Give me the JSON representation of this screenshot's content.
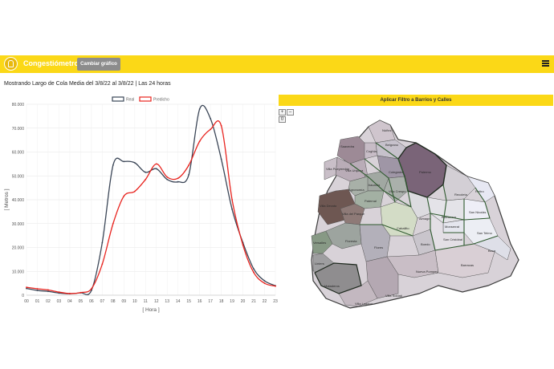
{
  "navbar": {
    "brand": "Congestiómetro",
    "switch_label": "Cambiar gráfico",
    "color": "#fbd817"
  },
  "subtitle": "Mostrando Largo de Cola Media del 3/8/22 al 3/8/22 | Las 24 horas",
  "filter_button": "Aplicar Filtro a Barrios y Calles",
  "map_controls": {
    "zoom_in": "+",
    "zoom_out": "–",
    "reset": "0"
  },
  "chart_data": {
    "type": "line",
    "x": [
      "00",
      "01",
      "02",
      "03",
      "04",
      "05",
      "06",
      "07",
      "08",
      "09",
      "10",
      "11",
      "12",
      "13",
      "14",
      "15",
      "16",
      "17",
      "18",
      "19",
      "20",
      "21",
      "22",
      "23"
    ],
    "series": [
      {
        "name": "Real",
        "color": "#3a4556",
        "values": [
          2800,
          2000,
          1600,
          900,
          600,
          1000,
          2000,
          22000,
          54500,
          56000,
          55500,
          51500,
          53000,
          48500,
          47500,
          50500,
          78000,
          74000,
          57000,
          36000,
          22000,
          11000,
          6000,
          4000
        ]
      },
      {
        "name": "Predicho",
        "color": "#e8241f",
        "values": [
          3300,
          2700,
          2200,
          1300,
          700,
          1100,
          2700,
          13000,
          30000,
          41500,
          43500,
          48500,
          55000,
          49500,
          49000,
          54500,
          64500,
          69500,
          71000,
          40000,
          21000,
          9500,
          5000,
          3800
        ]
      }
    ],
    "ylim": [
      0,
      80000
    ],
    "yticks": [
      "0",
      "10.000",
      "20.000",
      "30.000",
      "40.000",
      "50.000",
      "60.000",
      "70.000",
      "80.000"
    ],
    "xlabel": "[ Hora ]",
    "ylabel": "[ Metros ]",
    "legend_position": "top"
  },
  "map": {
    "barrios": [
      {
        "name": "Núñez",
        "color": "#cfc5cd"
      },
      {
        "name": "Saavedra",
        "color": "#9d8a96"
      },
      {
        "name": "Coghlan",
        "color": "#c7bcc6"
      },
      {
        "name": "Belgrano",
        "color": "#c6c1cb"
      },
      {
        "name": "Villa Urquiza",
        "color": "#b9acb7"
      },
      {
        "name": "Villa Pueyrredón",
        "color": "#c9bfc8"
      },
      {
        "name": "Colegiales",
        "color": "#9f96a6"
      },
      {
        "name": "Palermo",
        "color": "#7a6478"
      },
      {
        "name": "Chacarita",
        "color": "#a1a8a2"
      },
      {
        "name": "Agronomía",
        "color": "#a8b0a8"
      },
      {
        "name": "Villa Devoto",
        "color": "#6e5752"
      },
      {
        "name": "Villa del Parque",
        "color": "#8e7a77"
      },
      {
        "name": "Villa Crespo",
        "color": "#aab0ab"
      },
      {
        "name": "Paternal",
        "color": "#a3b0a3"
      },
      {
        "name": "Recoleta",
        "color": "#d3cfd5"
      },
      {
        "name": "Retiro",
        "color": "#e7e8f3"
      },
      {
        "name": "Almagro",
        "color": "#dcdbdf"
      },
      {
        "name": "Caballito",
        "color": "#d3dcc6"
      },
      {
        "name": "Balvanera",
        "color": "#e4e3e8"
      },
      {
        "name": "San Nicolás",
        "color": "#eeeef7"
      },
      {
        "name": "Monserrat",
        "color": "#e5e6ee"
      },
      {
        "name": "Versalles",
        "color": "#879985"
      },
      {
        "name": "Floresta",
        "color": "#9da49f"
      },
      {
        "name": "Flores",
        "color": "#b3b0ba"
      },
      {
        "name": "Boedo",
        "color": "#c9c5cc"
      },
      {
        "name": "San Cristóbal",
        "color": "#e3dfe5"
      },
      {
        "name": "San Telmo",
        "color": "#eceef4"
      },
      {
        "name": "Liniers",
        "color": "#9e9ea0"
      },
      {
        "name": "Barracas",
        "color": "#d9cfd5"
      },
      {
        "name": "Boca",
        "color": "#dedfe8"
      },
      {
        "name": "Mataderos",
        "color": "#8f8d8f"
      },
      {
        "name": "Nueva Pompeya",
        "color": "#c9bec6"
      },
      {
        "name": "Villa Lugano",
        "color": "#c3b8c0"
      },
      {
        "name": "Villa Soldati",
        "color": "#b4a8b2"
      }
    ]
  }
}
